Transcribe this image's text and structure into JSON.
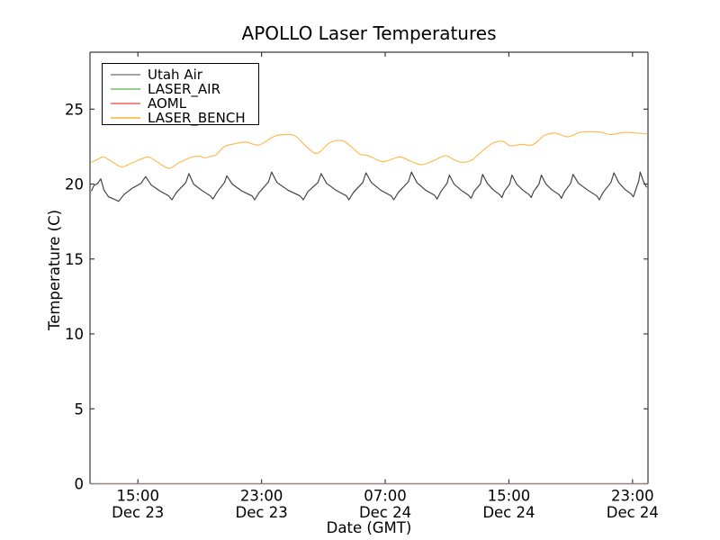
{
  "chart_data": {
    "type": "line",
    "title": "APOLLO Laser Temperatures",
    "xlabel": "Date (GMT)",
    "ylabel": "Temperature (C)",
    "x_unit_hours_origin": "Dec 23 12:00 GMT",
    "xlim": [
      -0.1,
      36
    ],
    "ylim": [
      0,
      28.8
    ],
    "grid": false,
    "legend_position": "upper left",
    "x_ticks": [
      {
        "t": 3,
        "time": "15:00",
        "date": "Dec 23"
      },
      {
        "t": 11,
        "time": "23:00",
        "date": "Dec 23"
      },
      {
        "t": 19,
        "time": "07:00",
        "date": "Dec 24"
      },
      {
        "t": 27,
        "time": "15:00",
        "date": "Dec 24"
      },
      {
        "t": 35,
        "time": "23:00",
        "date": "Dec 24"
      }
    ],
    "y_ticks": [
      0,
      5,
      10,
      15,
      20,
      25
    ],
    "series": [
      {
        "name": "Utah Air",
        "color": "#3f3f3f",
        "legend_color": "#a4a4a4",
        "alpha": 1,
        "smooth": false,
        "points": [
          [
            0,
            19.55
          ],
          [
            0.15,
            19.9
          ],
          [
            0.4,
            20.05
          ],
          [
            0.6,
            20.35
          ],
          [
            0.8,
            19.6
          ],
          [
            1.1,
            19.15
          ],
          [
            1.55,
            18.95
          ],
          [
            1.75,
            18.85
          ],
          [
            2.1,
            19.3
          ],
          [
            2.6,
            19.7
          ],
          [
            3.2,
            20.05
          ],
          [
            3.5,
            20.5
          ],
          [
            3.85,
            19.95
          ],
          [
            4.4,
            19.55
          ],
          [
            5.0,
            19.2
          ],
          [
            5.2,
            18.95
          ],
          [
            5.5,
            19.45
          ],
          [
            6.1,
            20.1
          ],
          [
            6.3,
            20.7
          ],
          [
            6.6,
            20.0
          ],
          [
            7.1,
            19.6
          ],
          [
            7.7,
            19.2
          ],
          [
            7.85,
            19.0
          ],
          [
            8.15,
            19.5
          ],
          [
            8.6,
            20.1
          ],
          [
            8.75,
            20.55
          ],
          [
            9.1,
            20.0
          ],
          [
            9.7,
            19.55
          ],
          [
            10.4,
            19.2
          ],
          [
            10.55,
            18.95
          ],
          [
            10.85,
            19.45
          ],
          [
            11.45,
            20.15
          ],
          [
            11.65,
            20.8
          ],
          [
            12.0,
            20.1
          ],
          [
            12.7,
            19.6
          ],
          [
            13.5,
            19.2
          ],
          [
            13.7,
            18.95
          ],
          [
            14.0,
            19.5
          ],
          [
            14.65,
            20.1
          ],
          [
            14.85,
            20.7
          ],
          [
            15.2,
            20.05
          ],
          [
            15.8,
            19.6
          ],
          [
            16.5,
            19.2
          ],
          [
            16.65,
            18.95
          ],
          [
            16.95,
            19.45
          ],
          [
            17.55,
            20.1
          ],
          [
            17.75,
            20.75
          ],
          [
            18.1,
            20.1
          ],
          [
            18.7,
            19.6
          ],
          [
            19.4,
            19.2
          ],
          [
            19.55,
            18.95
          ],
          [
            19.85,
            19.45
          ],
          [
            20.5,
            20.15
          ],
          [
            20.7,
            20.8
          ],
          [
            21.05,
            20.1
          ],
          [
            21.6,
            19.6
          ],
          [
            22.2,
            19.25
          ],
          [
            22.35,
            19.0
          ],
          [
            22.6,
            19.5
          ],
          [
            23.0,
            20.05
          ],
          [
            23.15,
            20.6
          ],
          [
            23.45,
            20.0
          ],
          [
            23.9,
            19.6
          ],
          [
            24.4,
            19.25
          ],
          [
            24.55,
            19.05
          ],
          [
            24.75,
            19.5
          ],
          [
            25.15,
            20.0
          ],
          [
            25.3,
            20.65
          ],
          [
            25.6,
            20.05
          ],
          [
            26.0,
            19.6
          ],
          [
            26.4,
            19.3
          ],
          [
            26.55,
            19.1
          ],
          [
            26.7,
            19.5
          ],
          [
            27.05,
            20.0
          ],
          [
            27.2,
            20.6
          ],
          [
            27.5,
            20.0
          ],
          [
            27.9,
            19.6
          ],
          [
            28.3,
            19.3
          ],
          [
            28.45,
            19.1
          ],
          [
            28.6,
            19.5
          ],
          [
            28.95,
            20.0
          ],
          [
            29.1,
            20.6
          ],
          [
            29.4,
            20.0
          ],
          [
            29.8,
            19.6
          ],
          [
            30.25,
            19.3
          ],
          [
            30.4,
            19.05
          ],
          [
            30.6,
            19.5
          ],
          [
            31.0,
            20.05
          ],
          [
            31.15,
            20.65
          ],
          [
            31.5,
            20.05
          ],
          [
            32.1,
            19.6
          ],
          [
            32.7,
            19.2
          ],
          [
            32.85,
            18.95
          ],
          [
            33.1,
            19.45
          ],
          [
            33.6,
            20.1
          ],
          [
            33.8,
            20.75
          ],
          [
            34.1,
            20.1
          ],
          [
            34.5,
            19.65
          ],
          [
            34.9,
            19.35
          ],
          [
            35.05,
            19.15
          ],
          [
            35.2,
            19.6
          ],
          [
            35.4,
            20.2
          ],
          [
            35.5,
            20.8
          ],
          [
            35.7,
            20.2
          ],
          [
            35.9,
            19.8
          ]
        ]
      },
      {
        "name": "LASER_AIR",
        "color": "#96cb96",
        "legend_color": "#96cb96",
        "alpha": 0.4,
        "smooth": false,
        "points": [
          [
            -0.1,
            0
          ],
          [
            36,
            0
          ]
        ]
      },
      {
        "name": "AOML",
        "color": "#f18989",
        "legend_color": "#f18989",
        "alpha": 0.45,
        "smooth": false,
        "points": [
          [
            -0.1,
            0
          ],
          [
            36,
            0
          ]
        ]
      },
      {
        "name": "LASER_BENCH",
        "color": "#fdb94e",
        "legend_color": "#fec36a",
        "alpha": 1,
        "smooth": true,
        "points": [
          [
            0,
            21.45
          ],
          [
            0.5,
            21.7
          ],
          [
            0.8,
            21.8
          ],
          [
            1.3,
            21.5
          ],
          [
            1.95,
            21.15
          ],
          [
            2.6,
            21.4
          ],
          [
            3.3,
            21.7
          ],
          [
            3.7,
            21.8
          ],
          [
            4.3,
            21.45
          ],
          [
            5.0,
            21.05
          ],
          [
            5.7,
            21.45
          ],
          [
            6.5,
            21.8
          ],
          [
            7.0,
            21.85
          ],
          [
            7.35,
            21.75
          ],
          [
            7.7,
            21.85
          ],
          [
            8.05,
            21.95
          ],
          [
            8.6,
            22.5
          ],
          [
            9.3,
            22.7
          ],
          [
            10.0,
            22.8
          ],
          [
            10.8,
            22.6
          ],
          [
            11.5,
            23.0
          ],
          [
            12.0,
            23.25
          ],
          [
            12.7,
            23.3
          ],
          [
            13.2,
            23.2
          ],
          [
            13.9,
            22.5
          ],
          [
            14.6,
            22.05
          ],
          [
            15.4,
            22.75
          ],
          [
            16.2,
            22.9
          ],
          [
            16.8,
            22.5
          ],
          [
            17.35,
            22.0
          ],
          [
            17.9,
            21.9
          ],
          [
            18.8,
            21.5
          ],
          [
            19.4,
            21.65
          ],
          [
            20.0,
            21.8
          ],
          [
            20.7,
            21.5
          ],
          [
            21.4,
            21.3
          ],
          [
            22.2,
            21.6
          ],
          [
            22.9,
            21.9
          ],
          [
            23.5,
            21.6
          ],
          [
            24.0,
            21.45
          ],
          [
            24.6,
            21.6
          ],
          [
            25.0,
            21.95
          ],
          [
            25.9,
            22.7
          ],
          [
            26.6,
            22.85
          ],
          [
            27.1,
            22.55
          ],
          [
            27.8,
            22.65
          ],
          [
            28.5,
            22.6
          ],
          [
            29.0,
            23.0
          ],
          [
            29.3,
            23.25
          ],
          [
            30.0,
            23.4
          ],
          [
            30.8,
            23.15
          ],
          [
            31.6,
            23.45
          ],
          [
            32.35,
            23.5
          ],
          [
            33.0,
            23.45
          ],
          [
            33.6,
            23.3
          ],
          [
            34.5,
            23.45
          ],
          [
            35.3,
            23.4
          ],
          [
            35.9,
            23.35
          ]
        ]
      }
    ]
  }
}
